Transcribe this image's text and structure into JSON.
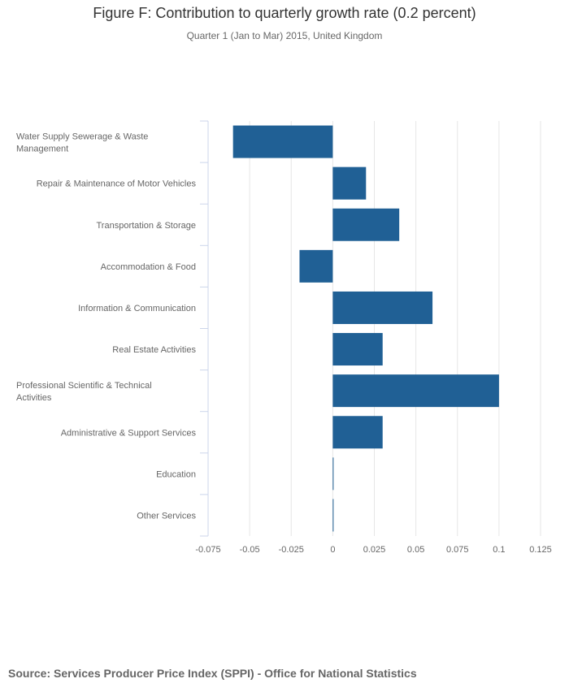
{
  "title": "Figure F: Contribution to quarterly growth rate (0.2 percent)",
  "subtitle": "Quarter 1 (Jan to Mar) 2015, United Kingdom",
  "source": "Source: Services Producer Price Index (SPPI) - Office for National Statistics",
  "colors": {
    "bar": "#206095",
    "grid": "#e6e6e6",
    "axis": "#ccd6eb",
    "text": "#666666"
  },
  "chart_data": {
    "type": "bar",
    "orientation": "horizontal",
    "title": "Figure F: Contribution to quarterly growth rate (0.2 percent)",
    "subtitle": "Quarter 1 (Jan to Mar) 2015, United Kingdom",
    "categories": [
      "Water Supply Sewerage & Waste Management",
      "Repair & Maintenance of Motor Vehicles",
      "Transportation & Storage",
      "Accommodation & Food",
      "Information & Communication",
      "Real Estate Activities",
      "Professional Scientific & Technical Activities",
      "Administrative & Support Services",
      "Education",
      "Other Services"
    ],
    "values": [
      -0.06,
      0.02,
      0.04,
      -0.02,
      0.06,
      0.03,
      0.1,
      0.03,
      0,
      0
    ],
    "xlim": [
      -0.075,
      0.125
    ],
    "xticks": [
      "-0.075",
      "-0.05",
      "-0.025",
      "0",
      "0.025",
      "0.05",
      "0.075",
      "0.1",
      "0.125"
    ],
    "grid": true,
    "legend": "none"
  }
}
